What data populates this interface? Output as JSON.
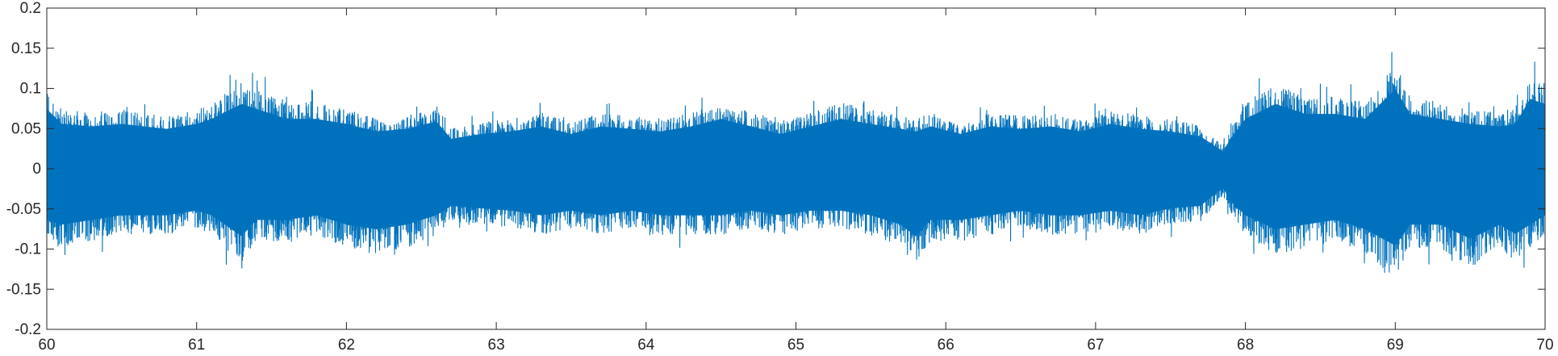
{
  "chart_data": {
    "type": "line",
    "title": "",
    "xlabel": "",
    "ylabel": "",
    "xlim": [
      60,
      70
    ],
    "ylim": [
      -0.2,
      0.2
    ],
    "x_ticks": [
      60,
      61,
      62,
      63,
      64,
      65,
      66,
      67,
      68,
      69,
      70
    ],
    "x_tick_labels": [
      "60",
      "61",
      "62",
      "63",
      "64",
      "65",
      "66",
      "67",
      "68",
      "69",
      "70"
    ],
    "y_ticks": [
      0.2,
      0.15,
      0.1,
      0.05,
      0,
      -0.05,
      -0.1,
      -0.15,
      -0.2
    ],
    "y_tick_labels": [
      "0.2",
      "0.15",
      "0.1",
      "0.05",
      "0",
      "-0.05",
      "-0.1",
      "-0.15",
      "-0.2"
    ],
    "grid": false,
    "legend": "none",
    "series": [
      {
        "color": "#0072BD",
        "envelope": {
          "x": [
            60.0,
            60.1,
            60.3,
            60.5,
            60.8,
            61.0,
            61.1,
            61.3,
            61.4,
            61.6,
            61.8,
            62.0,
            62.2,
            62.4,
            62.6,
            62.7,
            62.9,
            63.1,
            63.3,
            63.5,
            63.7,
            63.9,
            64.1,
            64.3,
            64.5,
            64.7,
            64.9,
            65.1,
            65.3,
            65.5,
            65.7,
            65.8,
            65.9,
            66.1,
            66.3,
            66.5,
            66.7,
            66.9,
            67.1,
            67.3,
            67.5,
            67.7,
            67.85,
            67.9,
            68.0,
            68.2,
            68.4,
            68.6,
            68.8,
            69.0,
            69.1,
            69.3,
            69.5,
            69.7,
            69.8,
            69.9,
            70.0
          ],
          "upper": [
            0.12,
            0.09,
            0.085,
            0.09,
            0.08,
            0.09,
            0.1,
            0.13,
            0.12,
            0.1,
            0.1,
            0.09,
            0.075,
            0.08,
            0.095,
            0.06,
            0.07,
            0.075,
            0.085,
            0.07,
            0.085,
            0.08,
            0.075,
            0.085,
            0.1,
            0.085,
            0.07,
            0.085,
            0.1,
            0.09,
            0.08,
            0.075,
            0.085,
            0.07,
            0.085,
            0.08,
            0.085,
            0.075,
            0.09,
            0.08,
            0.075,
            0.065,
            0.035,
            0.06,
            0.1,
            0.13,
            0.11,
            0.11,
            0.1,
            0.16,
            0.11,
            0.1,
            0.09,
            0.085,
            0.09,
            0.14,
            0.13
          ],
          "lower": [
            -0.11,
            -0.12,
            -0.11,
            -0.1,
            -0.1,
            -0.09,
            -0.1,
            -0.145,
            -0.11,
            -0.11,
            -0.1,
            -0.12,
            -0.13,
            -0.12,
            -0.1,
            -0.08,
            -0.085,
            -0.09,
            -0.1,
            -0.09,
            -0.1,
            -0.09,
            -0.1,
            -0.1,
            -0.1,
            -0.09,
            -0.1,
            -0.09,
            -0.09,
            -0.1,
            -0.12,
            -0.145,
            -0.11,
            -0.11,
            -0.1,
            -0.09,
            -0.1,
            -0.1,
            -0.09,
            -0.1,
            -0.085,
            -0.08,
            -0.04,
            -0.07,
            -0.1,
            -0.13,
            -0.12,
            -0.11,
            -0.13,
            -0.165,
            -0.12,
            -0.12,
            -0.15,
            -0.12,
            -0.14,
            -0.12,
            -0.1
          ]
        }
      }
    ]
  }
}
